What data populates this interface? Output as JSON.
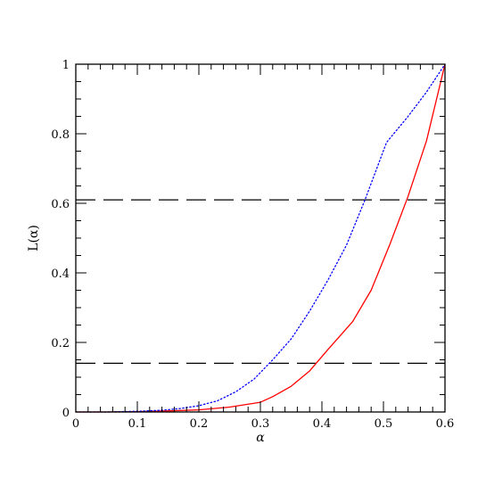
{
  "chart_data": {
    "type": "line",
    "title": "",
    "xlabel": "α",
    "ylabel": "L(α)",
    "xlim": [
      0,
      0.6
    ],
    "ylim": [
      0,
      1
    ],
    "x_ticks": [
      0,
      0.1,
      0.2,
      0.3,
      0.4,
      0.5,
      0.6
    ],
    "x_tick_labels": [
      "0",
      "0.1",
      "0.2",
      "0.3",
      "0.4",
      "0.5",
      "0.6"
    ],
    "y_ticks": [
      0,
      0.2,
      0.4,
      0.6,
      0.8,
      1
    ],
    "y_tick_labels": [
      "0",
      "0.2",
      "0.4",
      "0.6",
      "0.8",
      "1"
    ],
    "grid": false,
    "series": [
      {
        "style": "solid",
        "color": "#ff0000",
        "x": [
          0,
          0.05,
          0.1,
          0.15,
          0.2,
          0.25,
          0.3,
          0.32,
          0.35,
          0.38,
          0.41,
          0.45,
          0.48,
          0.51,
          0.54,
          0.57,
          0.6
        ],
        "y": [
          0,
          0,
          0.001,
          0.003,
          0.006,
          0.014,
          0.028,
          0.044,
          0.074,
          0.118,
          0.18,
          0.26,
          0.35,
          0.48,
          0.62,
          0.78,
          1.0
        ]
      },
      {
        "style": "dotted",
        "color": "#0000ff",
        "x": [
          0,
          0.05,
          0.1,
          0.14,
          0.17,
          0.2,
          0.23,
          0.26,
          0.29,
          0.32,
          0.35,
          0.38,
          0.41,
          0.44,
          0.47,
          0.505,
          0.54,
          0.57,
          0.6
        ],
        "y": [
          0,
          0,
          0.002,
          0.005,
          0.01,
          0.018,
          0.032,
          0.058,
          0.095,
          0.15,
          0.21,
          0.29,
          0.38,
          0.48,
          0.61,
          0.775,
          0.85,
          0.92,
          1.0
        ]
      }
    ],
    "reference_lines": [
      {
        "orientation": "horizontal",
        "style": "dashed",
        "color": "#000000",
        "y": 0.61
      },
      {
        "orientation": "horizontal",
        "style": "dashed",
        "color": "#000000",
        "y": 0.14
      }
    ]
  }
}
